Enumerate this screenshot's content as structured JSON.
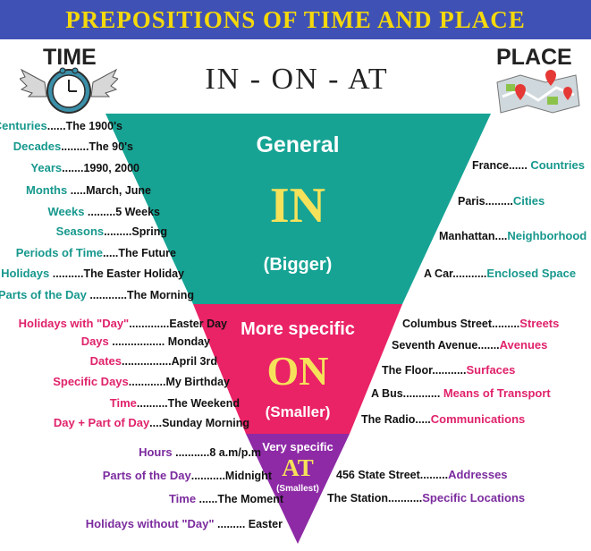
{
  "title": "PREPOSITIONS OF TIME AND PLACE",
  "time_label": "TIME",
  "place_label": "PLACE",
  "subtitle": "IN - ON - AT",
  "icons": [
    "clock-icon",
    "wings-icon",
    "map-icon",
    "location-pin-icon"
  ],
  "colors": {
    "banner": "#3f51b5",
    "title": "#f5d90a",
    "in": "#16a394",
    "on": "#ea2266",
    "at": "#8e2aa6",
    "keyword": "#f5e25a"
  },
  "sections": {
    "in": {
      "top": "General",
      "word": "IN",
      "bottom": "(Bigger)"
    },
    "on": {
      "top": "More specific",
      "word": "ON",
      "bottom": "(Smaller)"
    },
    "at": {
      "top": "Very specific",
      "word": "AT",
      "bottom": "(Smallest)"
    }
  },
  "time_in": [
    {
      "key": "Centuries",
      "dots": "......",
      "ex": "The 1900's"
    },
    {
      "key": "Decades",
      "dots": ".........",
      "ex": "The 90's"
    },
    {
      "key": "Years",
      "dots": ".......",
      "ex": "1990, 2000"
    },
    {
      "key": "Months",
      "dots": " .....",
      "ex": "March, June"
    },
    {
      "key": "Weeks",
      "dots": " .........",
      "ex": "5 Weeks"
    },
    {
      "key": "Seasons",
      "dots": ".........",
      "ex": "Spring"
    },
    {
      "key": "Periods of Time",
      "dots": ".....",
      "ex": "The Future"
    },
    {
      "key": "Holidays",
      "dots": " ..........",
      "ex": "The Easter Holiday"
    },
    {
      "key": "Parts of the Day",
      "dots": " ............",
      "ex": "The Morning"
    }
  ],
  "place_in": [
    {
      "ex": "France......",
      "key": "Countries"
    },
    {
      "ex": "Paris.........",
      "key": "Cities"
    },
    {
      "ex": "Manhattan....",
      "key": "Neighborhood"
    },
    {
      "ex": "A Car...........",
      "key": "Enclosed Space"
    }
  ],
  "time_on": [
    {
      "key": "Holidays with \"Day\"",
      "dots": ".............",
      "ex": "Easter Day"
    },
    {
      "key": "Days",
      "dots": " ................. ",
      "ex": "Monday"
    },
    {
      "key": "Dates",
      "dots": "................",
      "ex": "April 3rd"
    },
    {
      "key": "Specific Days",
      "dots": "............",
      "ex": "My Birthday"
    },
    {
      "key": "Time",
      "dots": "..........",
      "ex": "The Weekend"
    },
    {
      "key": "Day + Part of Day",
      "dots": "....",
      "ex": "Sunday Morning"
    }
  ],
  "place_on": [
    {
      "ex": "Columbus Street.........",
      "key": "Streets"
    },
    {
      "ex": "Seventh Avenue.......",
      "key": "Avenues"
    },
    {
      "ex": "The Floor...........",
      "key": "Surfaces"
    },
    {
      "ex": "A Bus............ ",
      "key": "Means of Transport"
    },
    {
      "ex": "The Radio.....",
      "key": "Communications"
    }
  ],
  "time_at": [
    {
      "key": "Hours",
      "dots": " ...........",
      "ex": "8 a.m/p.m"
    },
    {
      "key": "Parts of the Day",
      "dots": "...........",
      "ex": "Midnight"
    },
    {
      "key": "Time",
      "dots": " ......",
      "ex": "The Moment"
    },
    {
      "key": "Holidays without \"Day\"",
      "dots": " ......... ",
      "ex": "Easter"
    }
  ],
  "place_at": [
    {
      "ex": "456 State Street.........",
      "key": "Addresses"
    },
    {
      "ex": "The Station...........",
      "key": "Specific Locations"
    }
  ]
}
